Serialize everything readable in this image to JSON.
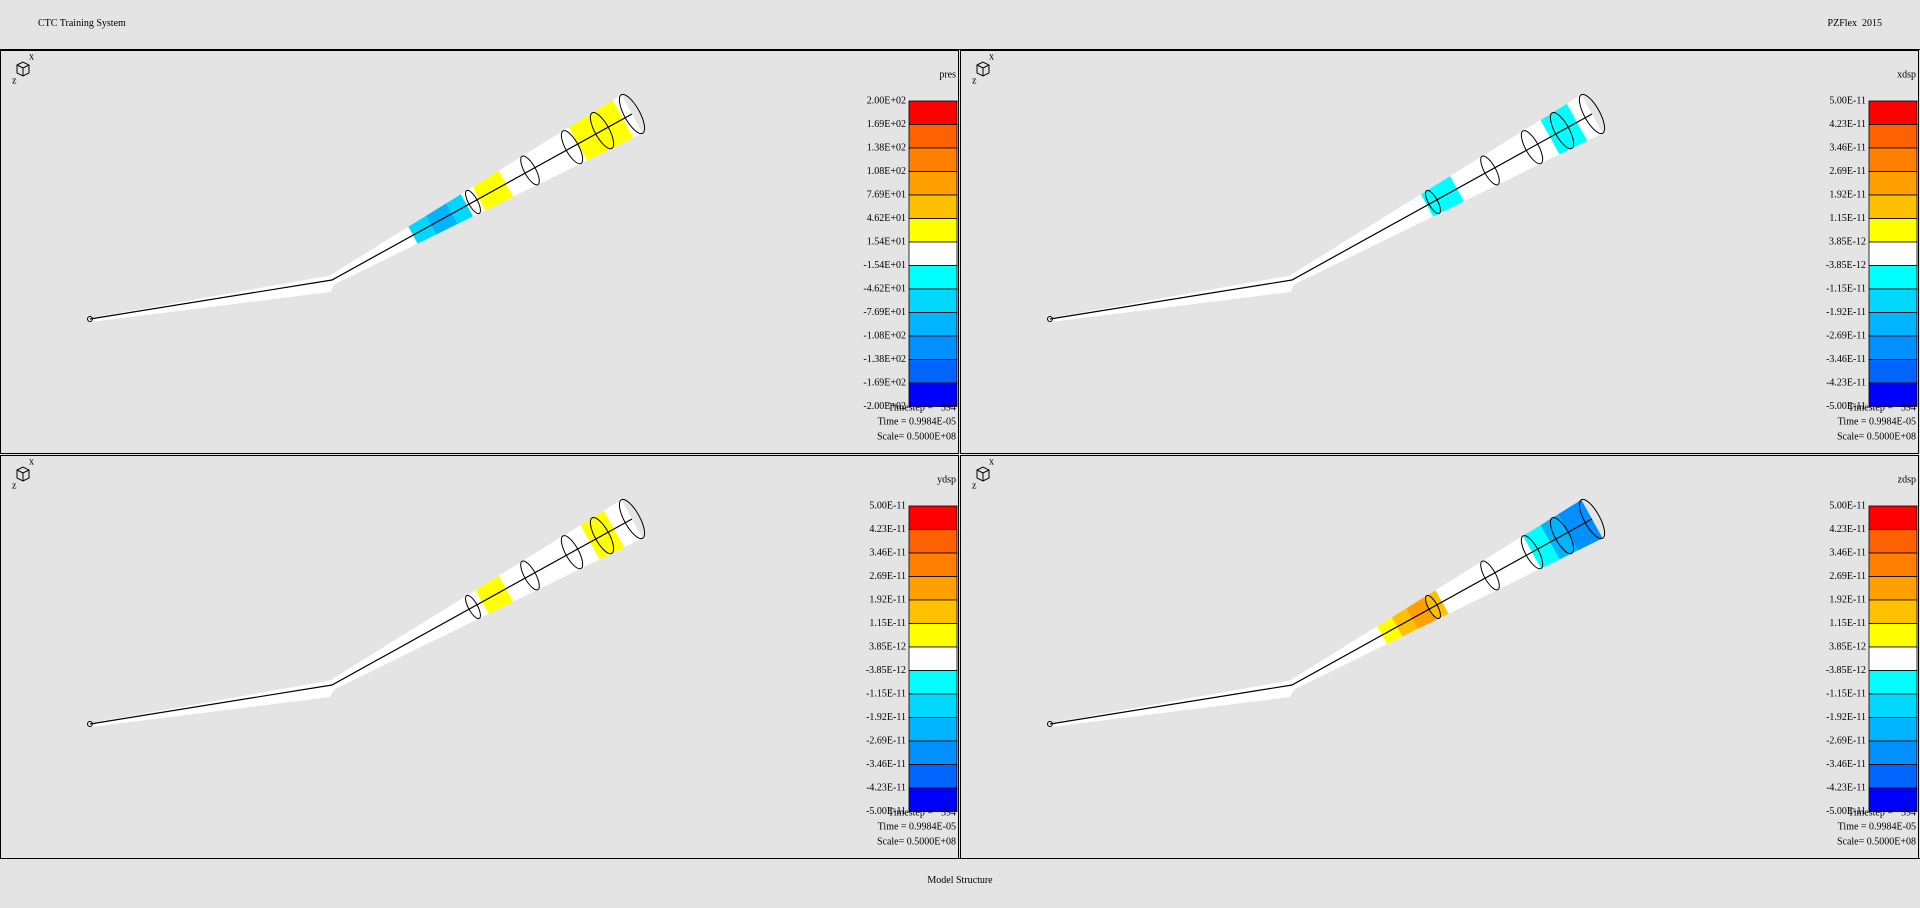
{
  "header": {
    "title": "CTC Training System",
    "product": "PZFlex  2015"
  },
  "legend_colors": [
    "#ff0000",
    "#ff6000",
    "#ff8000",
    "#ffa000",
    "#ffc000",
    "#ffff00",
    "#ffffff",
    "#00ffff",
    "#00d8ff",
    "#00b4ff",
    "#0090ff",
    "#0064ff",
    "#0000ff"
  ],
  "panels": [
    {
      "variable": "pres",
      "labels": [
        "2.00E+02",
        "1.69E+02",
        "1.38E+02",
        "1.08E+02",
        "7.69E+01",
        "4.62E+01",
        "1.54E+01",
        "-1.54E+01",
        "-4.62E+01",
        "-7.69E+01",
        "-1.08E+02",
        "-1.38E+02",
        "-1.69E+02",
        "-2.00E+02"
      ],
      "timestep_label": "Timestep =",
      "timestep": 594,
      "time": "Time = 0.9984E-05",
      "scale": "Scale= 0.5000E+08",
      "triad": [
        "x",
        "z"
      ]
    },
    {
      "variable": "xdsp",
      "labels": [
        "5.00E-11",
        "4.23E-11",
        "3.46E-11",
        "2.69E-11",
        "1.92E-11",
        "1.15E-11",
        "3.85E-12",
        "-3.85E-12",
        "-1.15E-11",
        "-1.92E-11",
        "-2.69E-11",
        "-3.46E-11",
        "-4.23E-11",
        "-5.00E-11"
      ],
      "timestep_label": "Timestep =",
      "timestep": 594,
      "time": "Time = 0.9984E-05",
      "scale": "Scale= 0.5000E+08",
      "triad": [
        "x",
        "z"
      ]
    },
    {
      "variable": "ydsp",
      "labels": [
        "5.00E-11",
        "4.23E-11",
        "3.46E-11",
        "2.69E-11",
        "1.92E-11",
        "1.15E-11",
        "3.85E-12",
        "-3.85E-12",
        "-1.15E-11",
        "-1.92E-11",
        "-2.69E-11",
        "-3.46E-11",
        "-4.23E-11",
        "-5.00E-11"
      ],
      "timestep_label": "Timestep =",
      "timestep": 594,
      "time": "Time = 0.9984E-05",
      "scale": "Scale= 0.5000E+08",
      "triad": [
        "x",
        "z"
      ]
    },
    {
      "variable": "zdsp",
      "labels": [
        "5.00E-11",
        "4.23E-11",
        "3.46E-11",
        "2.69E-11",
        "1.92E-11",
        "1.15E-11",
        "3.85E-12",
        "-3.85E-12",
        "-1.15E-11",
        "-1.92E-11",
        "-2.69E-11",
        "-3.46E-11",
        "-4.23E-11",
        "-5.00E-11"
      ],
      "timestep_label": "Timestep =",
      "timestep": 594,
      "time": "Time = 0.9984E-05",
      "scale": "Scale= 0.5000E+08",
      "triad": [
        "x",
        "z"
      ]
    }
  ],
  "footer": "Model Structure"
}
